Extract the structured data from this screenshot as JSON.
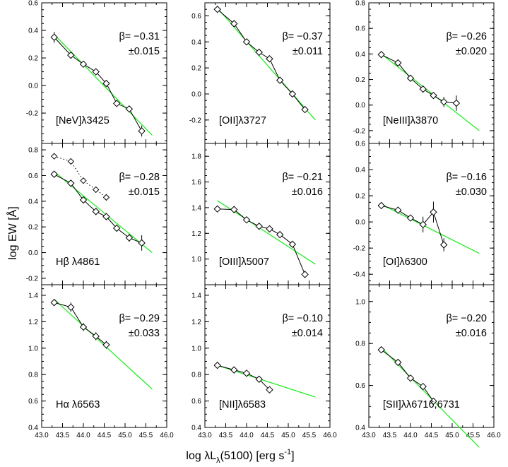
{
  "figure": {
    "ylabel": "log EW   [Å]",
    "xlabel": "log λL",
    "xlabel_sub": "λ",
    "xlabel_suffix": "(5100)   [erg s",
    "xlabel_sup": "-1",
    "xlabel_close": "]"
  },
  "colors": {
    "fit_line": "#22ee22",
    "data": "#000000"
  },
  "chart_data": [
    {
      "type": "line",
      "name_label": "[NeV]λ3425",
      "beta": "β= −0.31",
      "err": "±0.015",
      "xlim": [
        43.0,
        46.0
      ],
      "ylim": [
        -0.42,
        0.6
      ],
      "yticks": [
        "-0.2",
        "0.0",
        "0.2",
        "0.4",
        "0.6"
      ],
      "ytick_values": [
        -0.2,
        0.0,
        0.2,
        0.4,
        0.6
      ],
      "x": [
        43.3,
        43.7,
        44.0,
        44.3,
        44.55,
        44.8,
        45.1,
        45.4
      ],
      "y": [
        0.35,
        0.22,
        0.155,
        0.1,
        0.015,
        -0.13,
        -0.17,
        -0.33
      ],
      "yerr": [
        0.04,
        0.015,
        0.015,
        0.015,
        0.015,
        0.015,
        0.015,
        0.04
      ],
      "fit": {
        "x": [
          43.3,
          45.65
        ],
        "y": [
          0.37,
          -0.36
        ]
      }
    },
    {
      "type": "line",
      "name_label": "[OII]λ3727",
      "beta": "β= −0.37",
      "err": "±0.011",
      "xlim": [
        43.0,
        46.0
      ],
      "ylim": [
        -0.38,
        0.7
      ],
      "yticks": [
        "-0.2",
        "0.0",
        "0.2",
        "0.4",
        "0.6"
      ],
      "ytick_values": [
        -0.2,
        0.0,
        0.2,
        0.4,
        0.6
      ],
      "x": [
        43.3,
        43.7,
        44.0,
        44.3,
        44.55,
        44.8,
        45.1,
        45.4
      ],
      "y": [
        0.65,
        0.54,
        0.4,
        0.32,
        0.27,
        0.105,
        0.0,
        -0.12
      ],
      "yerr": [
        0.01,
        0.01,
        0.01,
        0.01,
        0.02,
        0.015,
        0.01,
        0.015
      ],
      "fit": {
        "x": [
          43.3,
          45.65
        ],
        "y": [
          0.66,
          -0.2
        ]
      }
    },
    {
      "type": "line",
      "name_label": "[NeIII]λ3870",
      "beta": "β= −0.26",
      "err": "±0.020",
      "xlim": [
        43.0,
        46.0
      ],
      "ylim": [
        -0.3,
        0.8
      ],
      "yticks": [
        "-0.2",
        "0.0",
        "0.2",
        "0.4",
        "0.6",
        "0.8"
      ],
      "ytick_values": [
        -0.2,
        0.0,
        0.2,
        0.4,
        0.6,
        0.8
      ],
      "x": [
        43.3,
        43.7,
        44.0,
        44.3,
        44.55,
        44.8,
        45.1
      ],
      "y": [
        0.395,
        0.33,
        0.21,
        0.125,
        0.075,
        0.025,
        0.015
      ],
      "yerr": [
        0.02,
        0.02,
        0.015,
        0.015,
        0.02,
        0.04,
        0.06
      ],
      "fit": {
        "x": [
          43.3,
          45.65
        ],
        "y": [
          0.4,
          -0.2
        ]
      }
    },
    {
      "type": "line",
      "name_label": "Hβ  λ4861",
      "beta": "β= −0.28",
      "err": "±0.015",
      "xlim": [
        43.0,
        46.0
      ],
      "ylim": [
        -0.25,
        0.85
      ],
      "yticks": [
        "-0.2",
        "0.0",
        "0.2",
        "0.4",
        "0.6",
        "0.8"
      ],
      "ytick_values": [
        -0.2,
        0.0,
        0.2,
        0.4,
        0.6,
        0.8
      ],
      "x": [
        43.3,
        43.7,
        44.0,
        44.3,
        44.55,
        44.8,
        45.1,
        45.4
      ],
      "y": [
        0.61,
        0.54,
        0.41,
        0.32,
        0.28,
        0.19,
        0.115,
        0.075
      ],
      "yerr": [
        0.01,
        0.015,
        0.015,
        0.015,
        0.015,
        0.015,
        0.03,
        0.06
      ],
      "dotted": {
        "x": [
          43.3,
          43.7,
          44.0,
          44.3,
          44.55
        ],
        "y": [
          0.75,
          0.71,
          0.56,
          0.49,
          0.43
        ]
      },
      "fit": {
        "x": [
          43.3,
          45.65
        ],
        "y": [
          0.63,
          0.0
        ]
      }
    },
    {
      "type": "line",
      "name_label": "[OIII]λ5007",
      "beta": "β= −0.21",
      "err": "±0.016",
      "xlim": [
        43.0,
        46.0
      ],
      "ylim": [
        0.8,
        1.9
      ],
      "yticks": [
        "1.0",
        "1.2",
        "1.4",
        "1.6",
        "1.8"
      ],
      "ytick_values": [
        1.0,
        1.2,
        1.4,
        1.6,
        1.8
      ],
      "x": [
        43.3,
        43.7,
        44.0,
        44.3,
        44.55,
        44.8,
        45.1,
        45.4
      ],
      "y": [
        1.39,
        1.385,
        1.305,
        1.255,
        1.235,
        1.19,
        1.115,
        0.88
      ],
      "yerr": [
        0.025,
        0.02,
        0.02,
        0.02,
        0.02,
        0.02,
        0.02,
        0.015
      ],
      "fit": {
        "x": [
          43.3,
          45.65
        ],
        "y": [
          1.455,
          0.96
        ]
      }
    },
    {
      "type": "line",
      "name_label": "[OI]λ6300",
      "beta": "β= −0.16",
      "err": "±0.030",
      "xlim": [
        43.0,
        46.0
      ],
      "ylim": [
        -0.48,
        0.6
      ],
      "yticks": [
        "-0.4",
        "-0.2",
        "0.0",
        "0.2",
        "0.4",
        "0.6"
      ],
      "ytick_values": [
        -0.4,
        -0.2,
        0.0,
        0.2,
        0.4,
        0.6
      ],
      "x": [
        43.3,
        43.7,
        44.0,
        44.3,
        44.55,
        44.8
      ],
      "y": [
        0.125,
        0.09,
        0.03,
        -0.02,
        0.075,
        -0.175
      ],
      "yerr": [
        0.02,
        0.02,
        0.02,
        0.06,
        0.08,
        0.05
      ],
      "fit": {
        "x": [
          43.3,
          45.65
        ],
        "y": [
          0.135,
          -0.24
        ]
      }
    },
    {
      "type": "line",
      "name_label": "Hα  λ6563",
      "beta": "β= −0.29",
      "err": "±0.033",
      "xlim": [
        43.0,
        46.0
      ],
      "ylim": [
        0.4,
        1.48
      ],
      "yticks": [
        "0.4",
        "0.6",
        "0.8",
        "1.0",
        "1.2",
        "1.4"
      ],
      "ytick_values": [
        0.4,
        0.6,
        0.8,
        1.0,
        1.2,
        1.4
      ],
      "x": [
        43.3,
        43.7,
        44.0,
        44.3,
        44.55
      ],
      "y": [
        1.345,
        1.31,
        1.16,
        1.09,
        1.025
      ],
      "yerr": [
        0.02,
        0.035,
        0.03,
        0.03,
        0.03
      ],
      "fit": {
        "x": [
          43.3,
          45.65
        ],
        "y": [
          1.37,
          0.69
        ]
      }
    },
    {
      "type": "line",
      "name_label": "[NII]λ6583",
      "beta": "β= −0.10",
      "err": "±0.014",
      "xlim": [
        43.0,
        46.0
      ],
      "ylim": [
        0.4,
        1.48
      ],
      "yticks": [
        "0.4",
        "0.6",
        "0.8",
        "1.0",
        "1.2",
        "1.4"
      ],
      "ytick_values": [
        0.4,
        0.6,
        0.8,
        1.0,
        1.2,
        1.4
      ],
      "x": [
        43.3,
        43.7,
        44.0,
        44.3,
        44.55
      ],
      "y": [
        0.87,
        0.835,
        0.81,
        0.765,
        0.685
      ],
      "yerr": [
        0.01,
        0.01,
        0.01,
        0.015,
        0.015
      ],
      "fit": {
        "x": [
          43.3,
          45.65
        ],
        "y": [
          0.87,
          0.63
        ]
      }
    },
    {
      "type": "line",
      "name_label": "[SII]λλ6716,6731",
      "beta": "β= −0.20",
      "err": "±0.016",
      "xlim": [
        43.0,
        46.0
      ],
      "ylim": [
        0.4,
        1.08
      ],
      "yticks": [
        "0.4",
        "0.6",
        "0.8",
        "1.0"
      ],
      "ytick_values": [
        0.4,
        0.6,
        0.8,
        1.0
      ],
      "x": [
        43.3,
        43.7,
        44.0,
        44.3,
        44.55
      ],
      "y": [
        0.77,
        0.71,
        0.635,
        0.595,
        0.525
      ],
      "yerr": [
        0.01,
        0.01,
        0.01,
        0.01,
        0.01
      ],
      "fit": {
        "x": [
          43.3,
          45.65
        ],
        "y": [
          0.78,
          0.305
        ]
      }
    }
  ],
  "xticks": [
    "43.0",
    "43.5",
    "44.0",
    "44.5",
    "45.0",
    "45.5",
    "46.0"
  ],
  "xtick_values": [
    43.0,
    43.5,
    44.0,
    44.5,
    45.0,
    45.5,
    46.0
  ]
}
